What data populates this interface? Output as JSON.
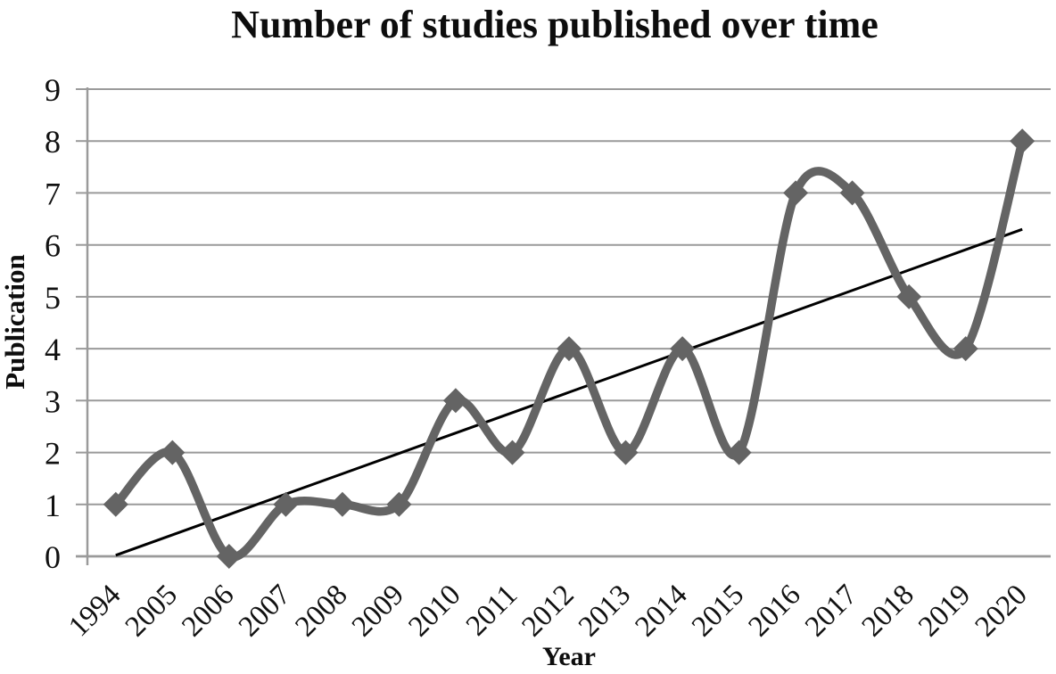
{
  "chart_data": {
    "type": "line",
    "title": "Number of studies published over time",
    "xlabel": "Year",
    "ylabel": "Publication",
    "categories": [
      "1994",
      "2005",
      "2006",
      "2007",
      "2008",
      "2009",
      "2010",
      "2011",
      "2012",
      "2013",
      "2014",
      "2015",
      "2016",
      "2017",
      "2018",
      "2019",
      "2020"
    ],
    "series": [
      {
        "values": [
          1,
          2,
          0,
          1,
          1,
          1,
          3,
          2,
          4,
          2,
          4,
          2,
          7,
          7,
          5,
          4,
          8
        ],
        "color": "#646464",
        "marker": "diamond",
        "smooth": true
      }
    ],
    "trendline": {
      "type": "linear",
      "start_value": 0.02,
      "end_value": 6.3,
      "color": "#000000"
    },
    "ylim": [
      0,
      9
    ],
    "y_ticks": [
      0,
      1,
      2,
      3,
      4,
      5,
      6,
      7,
      8,
      9
    ],
    "grid": true,
    "grid_color": "#9a9a9a",
    "legend": false,
    "background": "#ffffff"
  }
}
